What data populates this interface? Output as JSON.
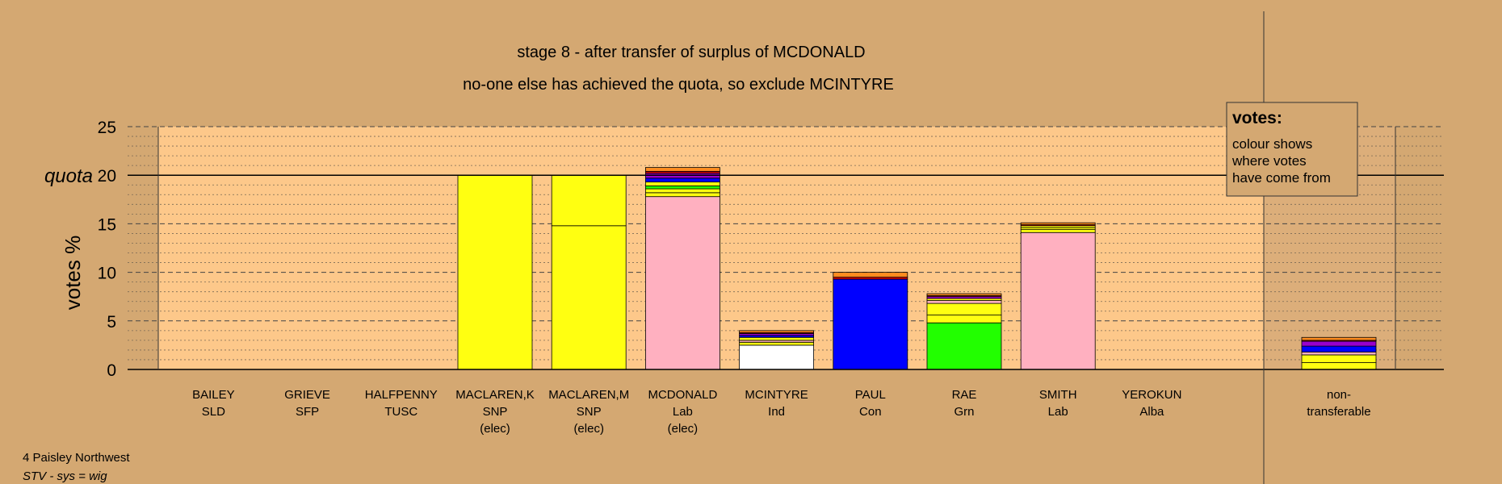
{
  "colors": {
    "background": "#d4a872",
    "plot_background": "#fdc88a",
    "side_panel": "#dcae7a",
    "SNP": "#ffff11",
    "Lab": "#ffb0c0",
    "Con": "#0000ff",
    "Grn": "#22ff00",
    "Ind": "#ffffff",
    "orange": "#ff8c20",
    "purple": "#9900cc",
    "red": "#dd0000",
    "blue": "#0000ff",
    "green": "#22ff00",
    "white": "#ffffff"
  },
  "footer": {
    "constituency": "4 Paisley Northwest",
    "system": "STV - sys = wig"
  },
  "legend": {
    "title": "votes:",
    "lines": [
      "colour shows",
      "where votes",
      "have come from"
    ]
  },
  "chart_data": {
    "type": "bar",
    "stacked": true,
    "title": "stage 8 - after transfer of surplus of MCDONALD",
    "subtitle": "no-one else has achieved the quota, so exclude MCINTYRE",
    "ylabel": "votes %",
    "ylim": [
      0,
      25
    ],
    "yticks": [
      0,
      5,
      10,
      15,
      20,
      25
    ],
    "quota": 20,
    "quota_label": "quota",
    "grid": "dashed major every 5, dotted minor every 1",
    "categories": [
      {
        "name": "BAILEY",
        "party": "SLD",
        "note": "",
        "segments": []
      },
      {
        "name": "GRIEVE",
        "party": "SFP",
        "note": "",
        "segments": []
      },
      {
        "name": "HALFPENNY",
        "party": "TUSC",
        "note": "",
        "segments": []
      },
      {
        "name": "MACLAREN,K",
        "party": "SNP",
        "note": "(elec)",
        "segments": [
          {
            "value": 20.0,
            "color": "#ffff11"
          }
        ]
      },
      {
        "name": "MACLAREN,M",
        "party": "SNP",
        "note": "(elec)",
        "segments": [
          {
            "value": 14.8,
            "color": "#ffff11"
          },
          {
            "value": 5.2,
            "color": "#ffff11"
          }
        ]
      },
      {
        "name": "MCDONALD",
        "party": "Lab",
        "note": "(elec)",
        "segments": [
          {
            "value": 17.8,
            "color": "#ffb0c0"
          },
          {
            "value": 0.4,
            "color": "#ffff11"
          },
          {
            "value": 0.4,
            "color": "#ffff11"
          },
          {
            "value": 0.3,
            "color": "#22ff00"
          },
          {
            "value": 0.4,
            "color": "#ffff11"
          },
          {
            "value": 0.4,
            "color": "#0000ff"
          },
          {
            "value": 0.5,
            "color": "#9900cc"
          },
          {
            "value": 0.2,
            "color": "#dd0000"
          },
          {
            "value": 0.4,
            "color": "#ff8c20"
          }
        ]
      },
      {
        "name": "MCINTYRE",
        "party": "Ind",
        "note": "",
        "segments": [
          {
            "value": 2.5,
            "color": "#ffffff"
          },
          {
            "value": 0.3,
            "color": "#ffff11"
          },
          {
            "value": 0.2,
            "color": "#ffb0c0"
          },
          {
            "value": 0.3,
            "color": "#ffff11"
          },
          {
            "value": 0.2,
            "color": "#0000ff"
          },
          {
            "value": 0.2,
            "color": "#9900cc"
          },
          {
            "value": 0.1,
            "color": "#dd0000"
          },
          {
            "value": 0.2,
            "color": "#ff8c20"
          }
        ]
      },
      {
        "name": "PAUL",
        "party": "Con",
        "note": "",
        "segments": [
          {
            "value": 9.3,
            "color": "#0000ff"
          },
          {
            "value": 0.2,
            "color": "#dd0000"
          },
          {
            "value": 0.5,
            "color": "#ff8c20"
          }
        ]
      },
      {
        "name": "RAE",
        "party": "Grn",
        "note": "",
        "segments": [
          {
            "value": 4.8,
            "color": "#22ff00"
          },
          {
            "value": 0.8,
            "color": "#ffff11"
          },
          {
            "value": 1.2,
            "color": "#ffff11"
          },
          {
            "value": 0.3,
            "color": "#ffb0c0"
          },
          {
            "value": 0.2,
            "color": "#ffff11"
          },
          {
            "value": 0.2,
            "color": "#9900cc"
          },
          {
            "value": 0.1,
            "color": "#dd0000"
          },
          {
            "value": 0.2,
            "color": "#ff8c20"
          }
        ]
      },
      {
        "name": "SMITH",
        "party": "Lab",
        "note": "",
        "segments": [
          {
            "value": 14.1,
            "color": "#ffb0c0"
          },
          {
            "value": 0.3,
            "color": "#ffff11"
          },
          {
            "value": 0.2,
            "color": "#ffff11"
          },
          {
            "value": 0.2,
            "color": "#ffff11"
          },
          {
            "value": 0.1,
            "color": "#dd0000"
          },
          {
            "value": 0.2,
            "color": "#ff8c20"
          }
        ]
      },
      {
        "name": "YEROKUN",
        "party": "Alba",
        "note": "",
        "segments": []
      }
    ],
    "nontransferable": {
      "label_lines": [
        "non-",
        "transferable"
      ],
      "segments": [
        {
          "value": 0.7,
          "color": "#ffff11"
        },
        {
          "value": 0.8,
          "color": "#ffff11"
        },
        {
          "value": 0.3,
          "color": "#ffb0c0"
        },
        {
          "value": 0.6,
          "color": "#0000ff"
        },
        {
          "value": 0.5,
          "color": "#9900cc"
        },
        {
          "value": 0.1,
          "color": "#dd0000"
        },
        {
          "value": 0.3,
          "color": "#ff8c20"
        }
      ]
    }
  }
}
